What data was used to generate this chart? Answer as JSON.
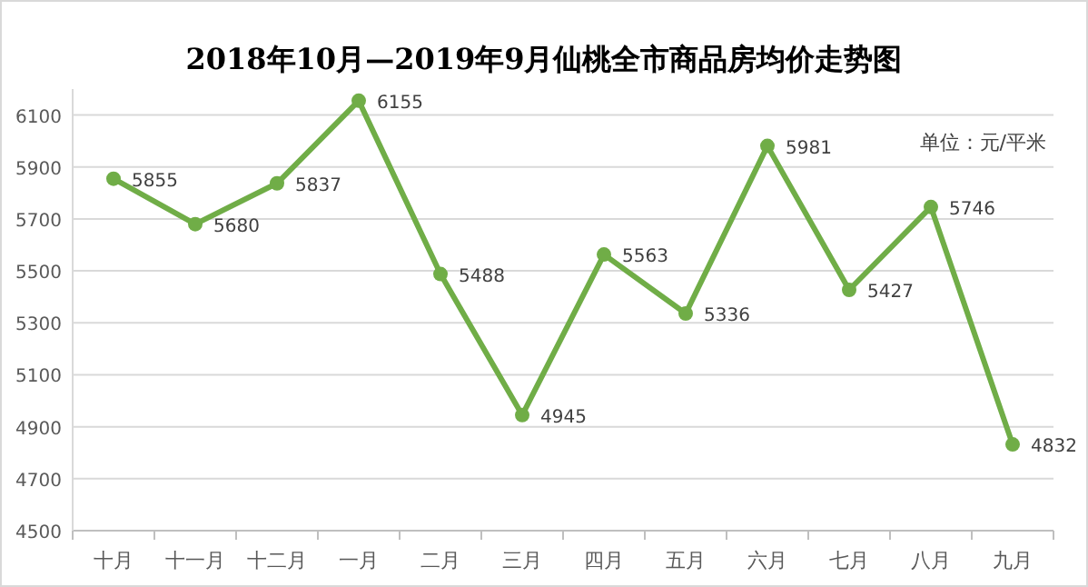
{
  "chart_data": {
    "type": "line",
    "title": "2018年10月—2019年9月仙桃全市商品房均价走势图",
    "annotations": [
      "单位：元/平米"
    ],
    "categories": [
      "十月",
      "十一月",
      "十二月",
      "一月",
      "二月",
      "三月",
      "四月",
      "五月",
      "六月",
      "七月",
      "八月",
      "九月"
    ],
    "series": [
      {
        "color": "#70ad47",
        "values": [
          5855,
          5680,
          5837,
          6155,
          5488,
          4945,
          5563,
          5336,
          5981,
          5427,
          5746,
          4832
        ]
      }
    ],
    "ylim": [
      4500,
      6200
    ],
    "yticks": [
      4500,
      4700,
      4900,
      5100,
      5300,
      5500,
      5700,
      5900,
      6100
    ],
    "grid": "y",
    "marker": "circle",
    "data_labels": true
  }
}
